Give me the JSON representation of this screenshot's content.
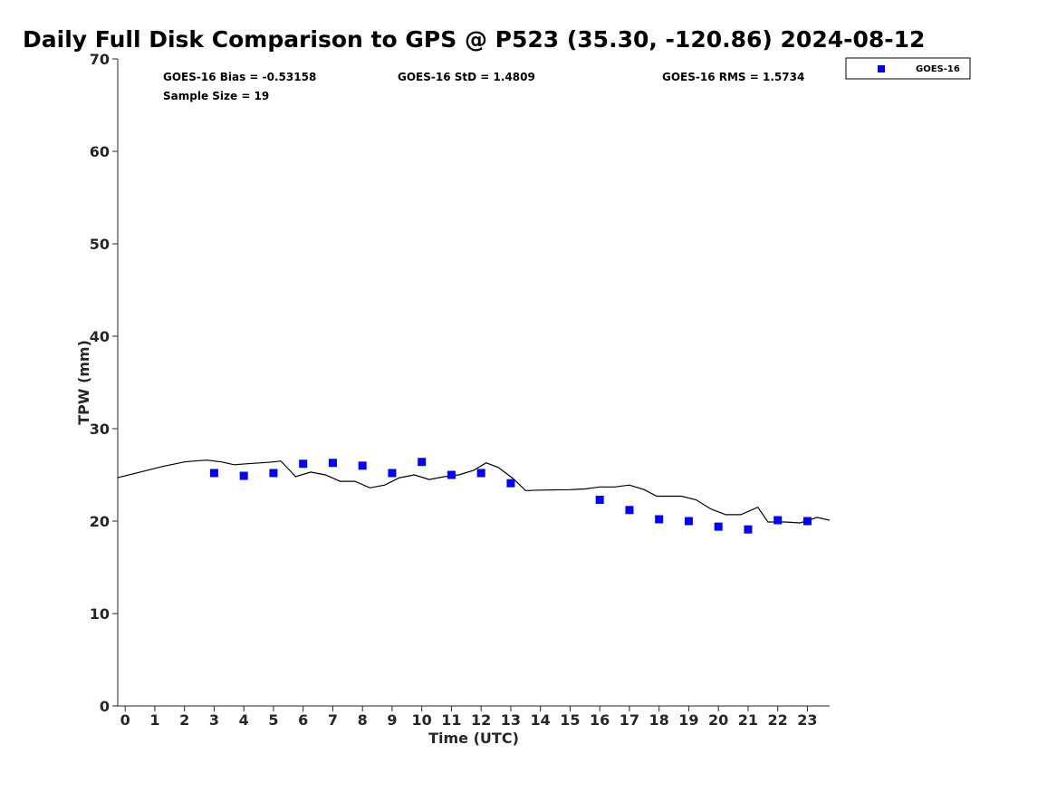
{
  "chart_data": {
    "type": "scatter",
    "title": "Daily Full Disk Comparison to GPS @ P523 (35.30, -120.86) 2024-08-12",
    "xlabel": "Time (UTC)",
    "ylabel": "TPW (mm)",
    "xlim": [
      -0.25,
      23.75
    ],
    "ylim": [
      0,
      70
    ],
    "x_ticks": [
      "0",
      "1",
      "2",
      "3",
      "4",
      "5",
      "6",
      "7",
      "8",
      "9",
      "10",
      "11",
      "12",
      "13",
      "14",
      "15",
      "16",
      "17",
      "18",
      "19",
      "20",
      "21",
      "22",
      "23"
    ],
    "y_ticks": [
      "0",
      "10",
      "20",
      "30",
      "40",
      "50",
      "60",
      "70"
    ],
    "grid": false,
    "legend_position": "top-right",
    "stats": {
      "bias": "GOES-16 Bias = -0.53158",
      "std": "GOES-16 StD = 1.4809",
      "rms": "GOES-16 RMS = 1.5734",
      "sample": "Sample Size = 19"
    },
    "series": [
      {
        "name": "GOES-16",
        "kind": "scatter",
        "marker": "square",
        "color": "#0000ff",
        "x": [
          3,
          4,
          5,
          6,
          7,
          8,
          9,
          10,
          11,
          12,
          13,
          16,
          17,
          18,
          19,
          20,
          21,
          22,
          23
        ],
        "y": [
          25.2,
          24.9,
          25.2,
          26.2,
          26.3,
          26.0,
          25.2,
          26.4,
          25.0,
          25.2,
          24.1,
          22.3,
          21.2,
          20.2,
          20.0,
          19.4,
          19.1,
          20.1,
          20.0
        ]
      },
      {
        "kind": "line",
        "color": "#000000",
        "x": [
          -0.25,
          0.5,
          1.25,
          2.0,
          2.33,
          2.75,
          3.25,
          3.67,
          4.08,
          4.58,
          5.0,
          5.25,
          5.75,
          6.25,
          6.75,
          7.25,
          7.75,
          8.25,
          8.75,
          9.25,
          9.75,
          10.25,
          10.75,
          11.25,
          11.75,
          12.17,
          12.58,
          13.08,
          13.5,
          14.0,
          14.5,
          15.0,
          15.5,
          16.0,
          16.5,
          17.0,
          17.5,
          17.92,
          18.25,
          18.75,
          19.25,
          19.75,
          20.25,
          20.75,
          21.33,
          21.67,
          22.25,
          22.75,
          23.33,
          23.75
        ],
        "y": [
          24.7,
          25.3,
          25.9,
          26.4,
          26.5,
          26.6,
          26.4,
          26.1,
          26.2,
          26.3,
          26.4,
          26.5,
          24.8,
          25.3,
          25.0,
          24.3,
          24.3,
          23.6,
          23.9,
          24.7,
          25.0,
          24.5,
          24.8,
          25.0,
          25.5,
          26.3,
          25.8,
          24.6,
          23.3,
          23.35,
          23.38,
          23.4,
          23.48,
          23.7,
          23.7,
          23.9,
          23.4,
          22.7,
          22.7,
          22.7,
          22.3,
          21.3,
          20.7,
          20.7,
          21.5,
          19.9,
          19.9,
          19.8,
          20.4,
          20.1
        ]
      }
    ]
  }
}
